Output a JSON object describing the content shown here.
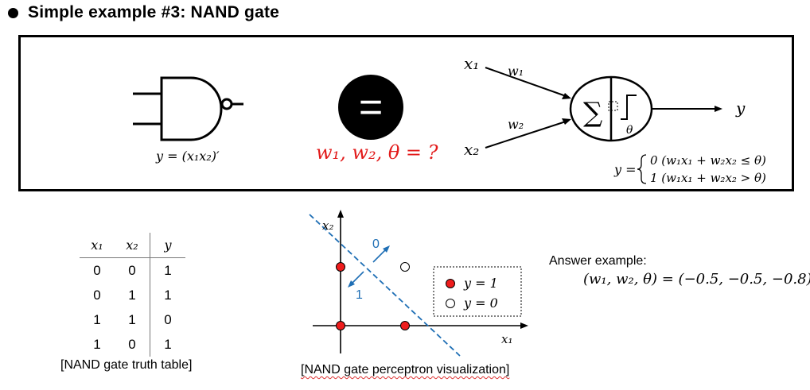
{
  "title": "Simple example #3: NAND gate",
  "gate": {
    "equation": "y = (x₁x₂)′"
  },
  "equals_sign": "=",
  "question": "w₁, w₂, θ = ?",
  "perceptron": {
    "input1": "x₁",
    "input2": "x₂",
    "weight1": "w₁",
    "weight2": "w₂",
    "sum_symbol": "∑",
    "threshold": "θ",
    "output": "y",
    "rule_lhs": "y =",
    "rule_case0": "0  (w₁x₁ + w₂x₂ ≤ θ)",
    "rule_case1": "1  (w₁x₁ + w₂x₂ > θ)"
  },
  "truth_table": {
    "headers": [
      "x₁",
      "x₂",
      "y"
    ],
    "rows": [
      [
        "0",
        "0",
        "1"
      ],
      [
        "0",
        "1",
        "1"
      ],
      [
        "1",
        "1",
        "0"
      ],
      [
        "1",
        "0",
        "1"
      ]
    ],
    "caption": "[NAND gate truth table]"
  },
  "plot": {
    "x_axis_label": "x₁",
    "y_axis_label": "x₂",
    "region_above": "0",
    "region_below": "1",
    "legend_filled": "y = 1",
    "legend_empty": "y = 0",
    "caption": "[NAND gate perceptron visualization]",
    "colors": {
      "filled_point": "#ee1c1c",
      "boundary": "#1f6fb5"
    }
  },
  "answer": {
    "label": "Answer example:",
    "value": "(w₁, w₂, θ) = (−0.5, −0.5, −0.8)"
  }
}
